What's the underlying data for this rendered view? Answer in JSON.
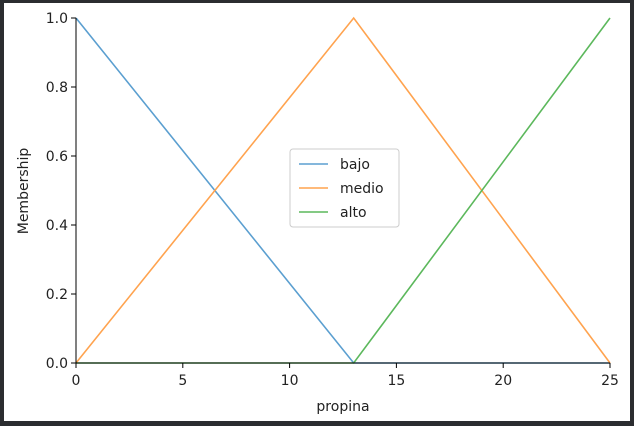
{
  "chart_data": {
    "type": "line",
    "xlabel": "propina",
    "ylabel": "Membership",
    "xlim": [
      0,
      25
    ],
    "ylim": [
      0,
      1
    ],
    "x_ticks": [
      0,
      5,
      10,
      15,
      20,
      25
    ],
    "y_ticks": [
      0.0,
      0.2,
      0.4,
      0.6,
      0.8,
      1.0
    ],
    "x_tick_labels": [
      "0",
      "5",
      "10",
      "15",
      "20",
      "25"
    ],
    "y_tick_labels": [
      "0.0",
      "0.2",
      "0.4",
      "0.6",
      "0.8",
      "1.0"
    ],
    "grid": false,
    "legend_position": "center",
    "series": [
      {
        "name": "bajo",
        "color": "#5b9fd0",
        "x": [
          0,
          13,
          25
        ],
        "y": [
          1,
          0,
          0
        ]
      },
      {
        "name": "medio",
        "color": "#ffa34f",
        "x": [
          0,
          13,
          25
        ],
        "y": [
          0,
          1,
          0
        ]
      },
      {
        "name": "alto",
        "color": "#5cb85c",
        "x": [
          0,
          13,
          25
        ],
        "y": [
          0,
          0,
          1
        ]
      }
    ]
  }
}
